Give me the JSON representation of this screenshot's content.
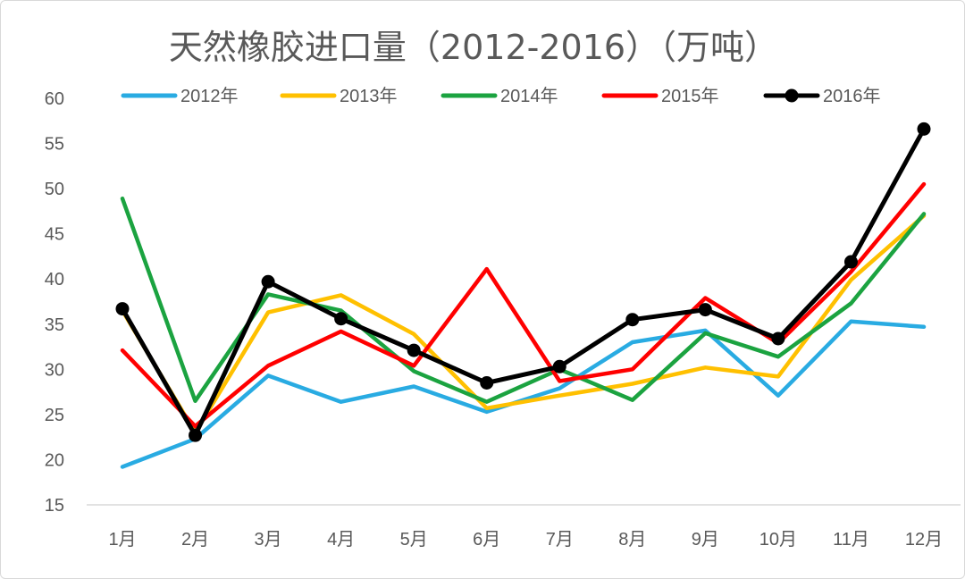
{
  "chart_data": {
    "type": "line",
    "title": "天然橡胶进口量（2012-2016）（万吨）",
    "xlabel": "",
    "ylabel": "",
    "categories": [
      "1月",
      "2月",
      "3月",
      "4月",
      "5月",
      "6月",
      "7月",
      "8月",
      "9月",
      "10月",
      "11月",
      "12月"
    ],
    "ylim": [
      15,
      60
    ],
    "yticks": [
      15,
      20,
      25,
      30,
      35,
      40,
      45,
      50,
      55,
      60
    ],
    "grid": false,
    "legend_position": "top",
    "series": [
      {
        "name": "2012年",
        "color": "#29ABE2",
        "markers": false,
        "values": [
          19.2,
          22.3,
          29.3,
          26.4,
          28.1,
          25.3,
          27.9,
          33.0,
          34.3,
          27.1,
          35.3,
          34.7
        ]
      },
      {
        "name": "2013年",
        "color": "#FFC000",
        "markers": false,
        "values": [
          36.5,
          23.0,
          36.3,
          38.2,
          33.9,
          25.7,
          27.1,
          28.4,
          30.2,
          29.2,
          39.9,
          47.0
        ]
      },
      {
        "name": "2014年",
        "color": "#1BA340",
        "markers": false,
        "values": [
          48.9,
          26.5,
          38.3,
          36.5,
          29.8,
          26.4,
          30.0,
          26.6,
          34.0,
          31.4,
          37.3,
          47.2
        ]
      },
      {
        "name": "2015年",
        "color": "#FF0000",
        "markers": false,
        "values": [
          32.1,
          23.7,
          30.4,
          34.2,
          30.4,
          41.1,
          28.7,
          30.0,
          37.9,
          32.9,
          40.8,
          50.5
        ]
      },
      {
        "name": "2016年",
        "color": "#000000",
        "markers": true,
        "values": [
          36.7,
          22.7,
          39.7,
          35.6,
          32.1,
          28.5,
          30.3,
          35.5,
          36.6,
          33.4,
          41.9,
          56.6
        ]
      }
    ]
  }
}
